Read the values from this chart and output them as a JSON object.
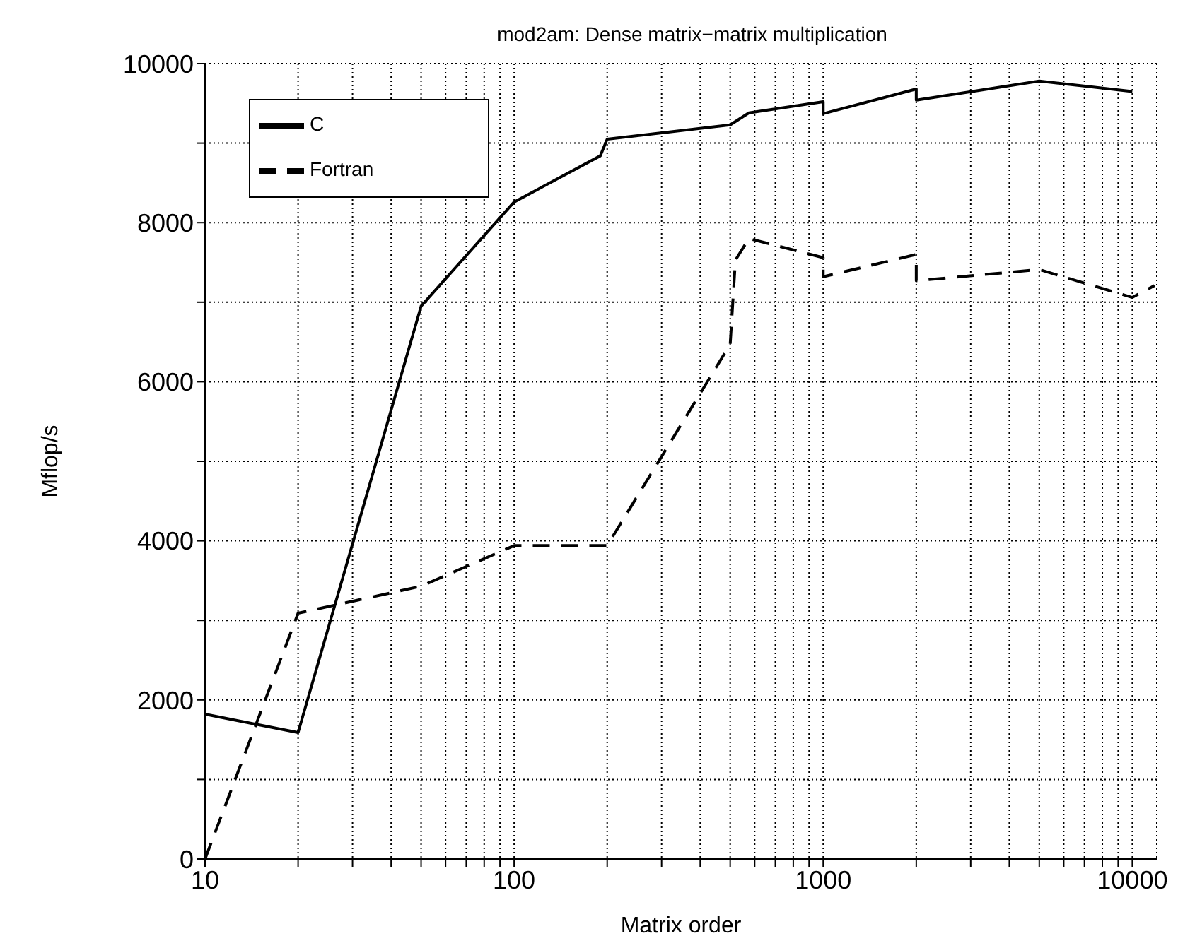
{
  "chart_data": {
    "type": "line",
    "title": "mod2am: Dense matrix−matrix multiplication",
    "xlabel": "Matrix order",
    "ylabel": "Mflop/s",
    "log": "x",
    "grid": true,
    "legend": "top left",
    "xlim": [
      10,
      12000
    ],
    "ylim": [
      0,
      10000
    ],
    "xticks": [
      10,
      {
        "value": 20,
        "label": null
      },
      {
        "value": 30,
        "label": null
      },
      {
        "value": 40,
        "label": null
      },
      {
        "value": 50,
        "label": null
      },
      {
        "value": 60,
        "label": null
      },
      {
        "value": 70,
        "label": null
      },
      {
        "value": 80,
        "label": null
      },
      {
        "value": 90,
        "label": null
      },
      100,
      {
        "value": 200,
        "label": null
      },
      {
        "value": 300,
        "label": null
      },
      {
        "value": 400,
        "label": null
      },
      {
        "value": 500,
        "label": null
      },
      {
        "value": 600,
        "label": null
      },
      {
        "value": 700,
        "label": null
      },
      {
        "value": 800,
        "label": null
      },
      {
        "value": 900,
        "label": null
      },
      1000,
      {
        "value": 2000,
        "label": null
      },
      {
        "value": 3000,
        "label": null
      },
      {
        "value": 4000,
        "label": null
      },
      {
        "value": 5000,
        "label": null
      },
      {
        "value": 6000,
        "label": null
      },
      {
        "value": 7000,
        "label": null
      },
      {
        "value": 8000,
        "label": null
      },
      {
        "value": 9000,
        "label": null
      },
      10000
    ],
    "yticks": [
      0,
      {
        "value": 1000,
        "label": null
      },
      2000,
      {
        "value": 3000,
        "label": null
      },
      4000,
      {
        "value": 5000,
        "label": null
      },
      6000,
      {
        "value": 7000,
        "label": null
      },
      8000,
      {
        "value": 9000,
        "label": null
      },
      10000
    ],
    "series": [
      {
        "name": "C",
        "color": "#000000",
        "line_style": "solid",
        "x": [
          10,
          20,
          50,
          100,
          190,
          200,
          500,
          575,
          1000,
          1000,
          2000,
          2000,
          5000,
          10000
        ],
        "values": [
          1820,
          1590,
          6950,
          8260,
          8840,
          9050,
          9230,
          9380,
          9520,
          9370,
          9680,
          9540,
          9780,
          9650
        ]
      },
      {
        "name": "Fortran",
        "color": "#000000",
        "line_style": "dashed",
        "x": [
          10,
          20,
          50,
          100,
          200,
          500,
          520,
          575,
          1000,
          1000,
          2000,
          2000,
          5000,
          10000,
          11800
        ],
        "values": [
          0,
          3090,
          3430,
          3940,
          3940,
          6470,
          7530,
          7800,
          7560,
          7320,
          7600,
          7270,
          7410,
          7060,
          7210
        ]
      }
    ]
  }
}
